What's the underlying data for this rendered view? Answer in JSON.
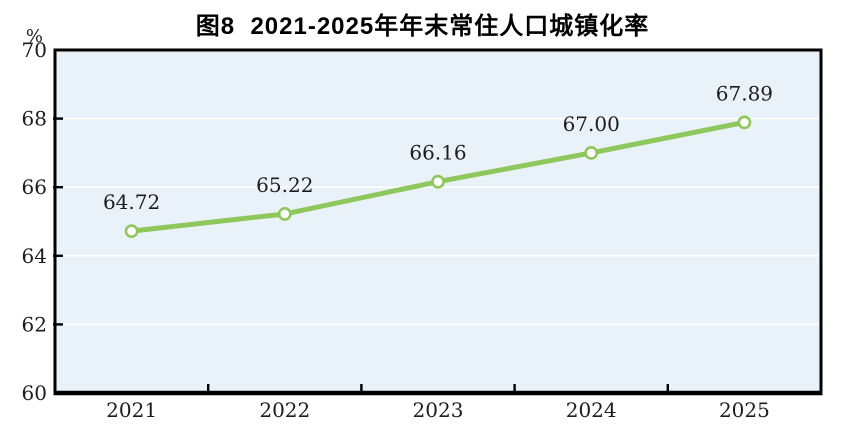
{
  "chart_data": {
    "type": "line",
    "title": "图8  2021-2025年年末常住人口城镇化率",
    "y_unit_label": "%",
    "categories": [
      "2021",
      "2022",
      "2023",
      "2024",
      "2025"
    ],
    "series": [
      {
        "name": "年末常住人口城镇化率",
        "values": [
          64.72,
          65.22,
          66.16,
          67.0,
          67.89
        ],
        "labels": [
          "64.72",
          "65.22",
          "66.16",
          "67.00",
          "67.89"
        ]
      }
    ],
    "ylim": [
      60,
      70
    ],
    "yticks": [
      60,
      62,
      64,
      66,
      68,
      70
    ],
    "grid": true,
    "legend_position": "none",
    "colors": {
      "line": "#8ec75b",
      "marker_fill": "#ffffff",
      "marker_stroke": "#8ec75b",
      "plot_background": "#e9f2f8",
      "gridline": "#ffffff",
      "axis": "#000000",
      "text": "#1d1d1f",
      "page_background": "#ffffff"
    }
  }
}
